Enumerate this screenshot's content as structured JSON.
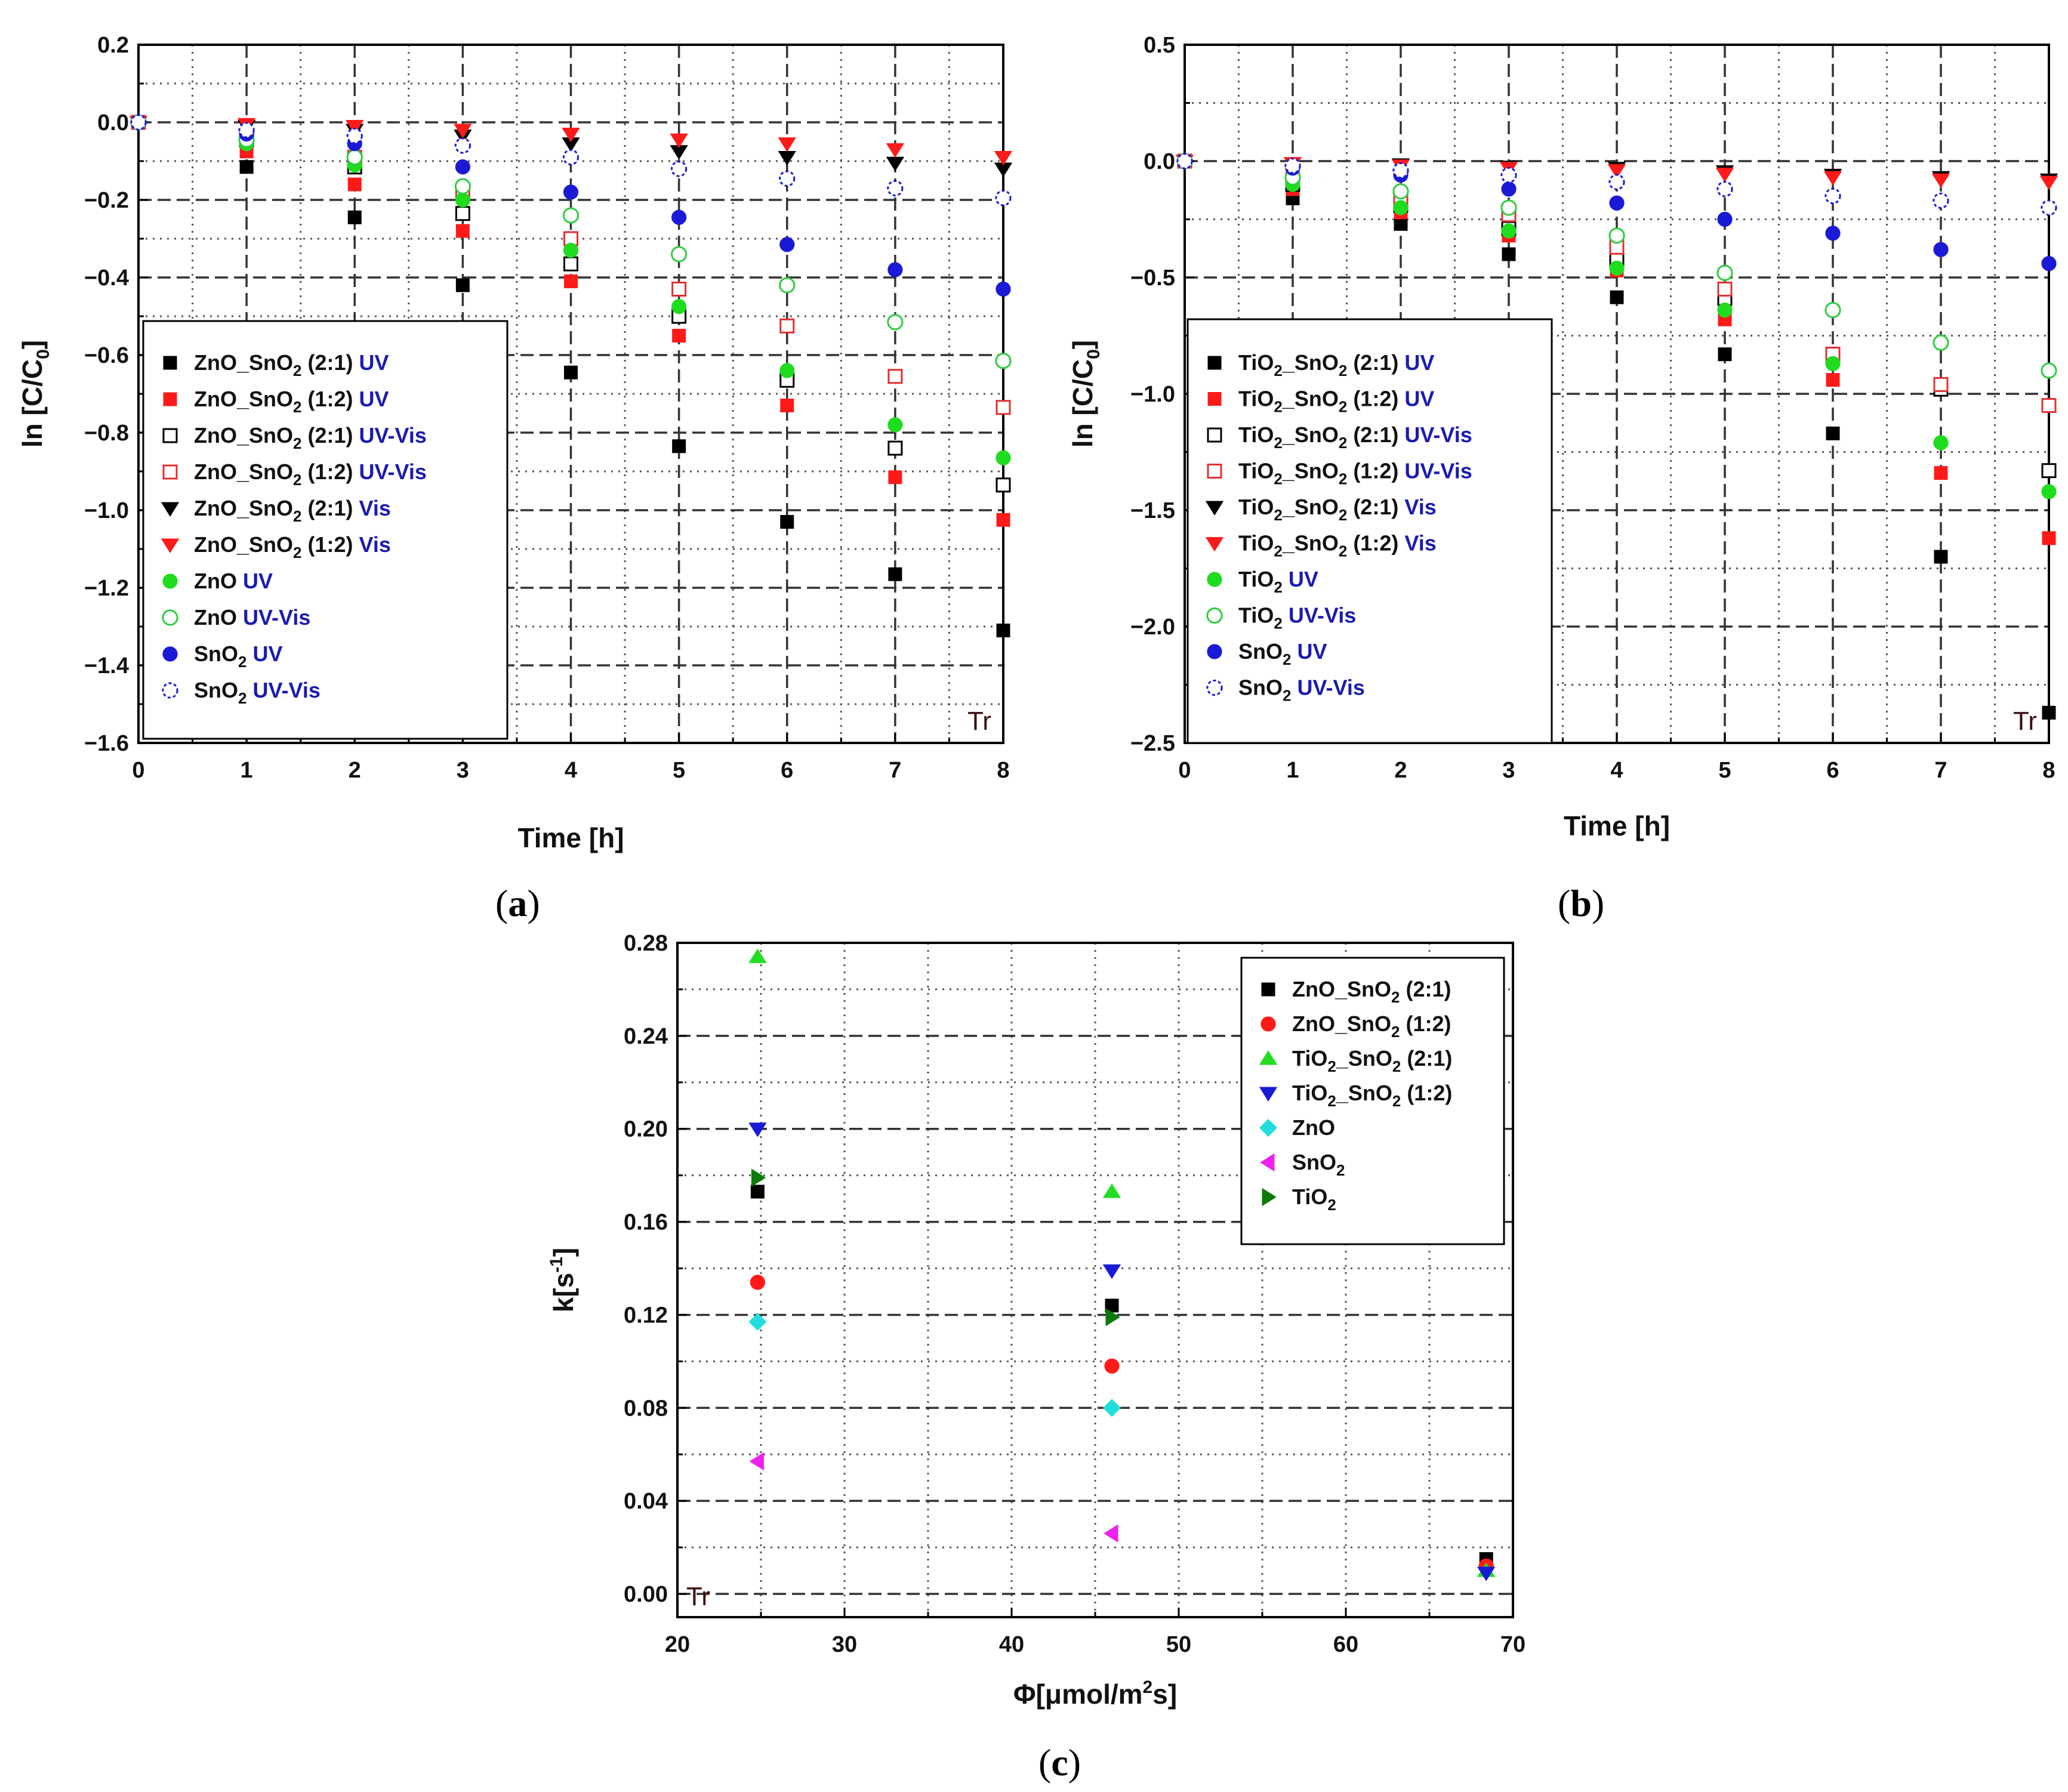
{
  "chart_data": [
    {
      "id": "a",
      "type": "scatter",
      "panel_label": "a",
      "xlabel": "Time [h]",
      "ylabel": "ln [C/C0]",
      "ylabel_main": "ln [C/C",
      "ylabel_sub": "0",
      "ylabel_close": "]",
      "xlim": [
        0,
        8
      ],
      "ylim": [
        -1.6,
        0.2
      ],
      "xticks": [
        0,
        1,
        2,
        3,
        4,
        5,
        6,
        7,
        8
      ],
      "yticks": [
        0.2,
        0.0,
        -0.2,
        -0.4,
        -0.6,
        -0.8,
        -1.0,
        -1.2,
        -1.4,
        -1.6
      ],
      "ytick_labels": [
        "0.2",
        "0.0",
        "−0.2",
        "−0.4",
        "−0.6",
        "−0.8",
        "−1.0",
        "−1.2",
        "−1.4",
        "−1.6"
      ],
      "dashed_major_y": [
        0.0,
        -0.2,
        -0.4,
        -0.6,
        -0.8,
        -1.0,
        -1.2,
        -1.4
      ],
      "dotted_minor_y": [
        0.1,
        -0.1,
        -0.3,
        -0.5,
        -0.7,
        -0.9,
        -1.1,
        -1.3,
        -1.5
      ],
      "dashed_major_x": [
        1,
        2,
        3,
        4,
        5,
        6,
        7
      ],
      "dotted_minor_x": [
        0.5,
        1.5,
        2.5,
        3.5,
        4.5,
        5.5,
        6.5,
        7.5
      ],
      "corner_text": "Tr",
      "legend_position": "lower-left",
      "x": [
        0,
        1,
        2,
        3,
        4,
        5,
        6,
        7,
        8
      ],
      "series": [
        {
          "name": "ZnO_SnO2 (2:1) UV",
          "main": "ZnO_SnO",
          "sub": "2",
          "rest": " (2:1)",
          "cond": "UV",
          "marker": "square",
          "fill": true,
          "color": "#000000",
          "values": [
            0,
            -0.115,
            -0.245,
            -0.42,
            -0.645,
            -0.835,
            -1.03,
            -1.165,
            -1.31
          ]
        },
        {
          "name": "ZnO_SnO2 (1:2) UV",
          "main": "ZnO_SnO",
          "sub": "2",
          "rest": " (1:2)",
          "cond": "UV",
          "marker": "square",
          "fill": true,
          "color": "#ff1a1a",
          "values": [
            0,
            -0.075,
            -0.16,
            -0.28,
            -0.41,
            -0.55,
            -0.73,
            -0.915,
            -1.025
          ]
        },
        {
          "name": "ZnO_SnO2 (2:1) UV-Vis",
          "main": "ZnO_SnO",
          "sub": "2",
          "rest": " (2:1)",
          "cond": "UV-Vis",
          "marker": "square",
          "fill": false,
          "color": "#000000",
          "values": [
            0,
            -0.045,
            -0.115,
            -0.235,
            -0.365,
            -0.5,
            -0.665,
            -0.84,
            -0.935
          ]
        },
        {
          "name": "ZnO_SnO2 (1:2) UV-Vis",
          "main": "ZnO_SnO",
          "sub": "2",
          "rest": " (1:2)",
          "cond": "UV-Vis",
          "marker": "square",
          "fill": false,
          "color": "#e23030",
          "values": [
            0,
            -0.035,
            -0.09,
            -0.18,
            -0.3,
            -0.43,
            -0.525,
            -0.655,
            -0.735
          ]
        },
        {
          "name": "ZnO_SnO2 (2:1) Vis",
          "main": "ZnO_SnO",
          "sub": "2",
          "rest": " (2:1)",
          "cond": "Vis",
          "marker": "tri-down",
          "fill": true,
          "color": "#000000",
          "values": [
            0,
            -0.01,
            -0.02,
            -0.035,
            -0.055,
            -0.075,
            -0.09,
            -0.105,
            -0.12
          ]
        },
        {
          "name": "ZnO_SnO2 (1:2) Vis",
          "main": "ZnO_SnO",
          "sub": "2",
          "rest": " (1:2)",
          "cond": "Vis",
          "marker": "tri-down",
          "fill": true,
          "color": "#ff1a1a",
          "values": [
            0,
            -0.005,
            -0.01,
            -0.02,
            -0.03,
            -0.045,
            -0.055,
            -0.07,
            -0.09
          ]
        },
        {
          "name": "ZnO UV",
          "main": "ZnO",
          "sub": "",
          "rest": "",
          "cond": "UV",
          "marker": "circle",
          "fill": true,
          "color": "#1fdc1f",
          "values": [
            0,
            -0.055,
            -0.11,
            -0.2,
            -0.33,
            -0.475,
            -0.64,
            -0.78,
            -0.865
          ]
        },
        {
          "name": "ZnO UV-Vis",
          "main": "ZnO",
          "sub": "",
          "rest": "",
          "cond": "UV-Vis",
          "marker": "circle",
          "fill": false,
          "color": "#2ecc40",
          "values": [
            0,
            -0.045,
            -0.09,
            -0.165,
            -0.24,
            -0.34,
            -0.42,
            -0.515,
            -0.615
          ]
        },
        {
          "name": "SnO2 UV",
          "main": "SnO",
          "sub": "2",
          "rest": "",
          "cond": "UV",
          "marker": "circle",
          "fill": true,
          "color": "#1a1ad6",
          "values": [
            0,
            -0.03,
            -0.055,
            -0.115,
            -0.18,
            -0.245,
            -0.315,
            -0.38,
            -0.43
          ]
        },
        {
          "name": "SnO2 UV-Vis",
          "main": "SnO",
          "sub": "2",
          "rest": "",
          "cond": "UV-Vis",
          "marker": "circle",
          "fill": false,
          "color": "#1a1ad6",
          "dashed": true,
          "values": [
            0,
            -0.02,
            -0.035,
            -0.06,
            -0.09,
            -0.12,
            -0.145,
            -0.17,
            -0.195
          ]
        }
      ]
    },
    {
      "id": "b",
      "type": "scatter",
      "panel_label": "b",
      "xlabel": "Time [h]",
      "ylabel": "ln [C/C0]",
      "ylabel_main": "ln [C/C",
      "ylabel_sub": "0",
      "ylabel_close": "]",
      "xlim": [
        0,
        8
      ],
      "ylim": [
        -2.5,
        0.5
      ],
      "xticks": [
        0,
        1,
        2,
        3,
        4,
        5,
        6,
        7,
        8
      ],
      "yticks": [
        0.5,
        0.0,
        -0.5,
        -1.0,
        -1.5,
        -2.0,
        -2.5
      ],
      "ytick_labels": [
        "0.5",
        "0.0",
        "−0.5",
        "−1.0",
        "−1.5",
        "−2.0",
        "−2.5"
      ],
      "dashed_major_y": [
        0.0,
        -0.5,
        -1.0,
        -1.5,
        -2.0
      ],
      "dotted_minor_y": [
        0.25,
        -0.25,
        -0.75,
        -1.25,
        -1.75,
        -2.25
      ],
      "dashed_major_x": [
        1,
        2,
        3,
        4,
        5,
        6,
        7
      ],
      "dotted_minor_x": [
        0.5,
        1.5,
        2.5,
        3.5,
        4.5,
        5.5,
        6.5,
        7.5
      ],
      "corner_text": "Tr",
      "legend_position": "lower-left",
      "x": [
        0,
        1,
        2,
        3,
        4,
        5,
        6,
        7,
        8
      ],
      "series": [
        {
          "name": "TiO2_SnO2 (2:1) UV",
          "main": "TiO",
          "sub": "2",
          "rest": "_SnO",
          "sub2": "2",
          "rest2": " (2:1)",
          "cond": "UV",
          "marker": "square",
          "fill": true,
          "color": "#000000",
          "values": [
            0,
            -0.16,
            -0.27,
            -0.4,
            -0.585,
            -0.83,
            -1.17,
            -1.7,
            -2.37
          ]
        },
        {
          "name": "TiO2_SnO2 (1:2) UV",
          "main": "TiO",
          "sub": "2",
          "rest": "_SnO",
          "sub2": "2",
          "rest2": " (1:2)",
          "cond": "UV",
          "marker": "square",
          "fill": true,
          "color": "#ff1a1a",
          "values": [
            0,
            -0.12,
            -0.22,
            -0.32,
            -0.47,
            -0.68,
            -0.94,
            -1.34,
            -1.62
          ]
        },
        {
          "name": "TiO2_SnO2 (2:1) UV-Vis",
          "main": "TiO",
          "sub": "2",
          "rest": "_SnO",
          "sub2": "2",
          "rest2": " (2:1)",
          "cond": "UV-Vis",
          "marker": "square",
          "fill": false,
          "color": "#000000",
          "values": [
            0,
            -0.1,
            -0.19,
            -0.29,
            -0.42,
            -0.59,
            -0.83,
            -0.98,
            -1.33
          ]
        },
        {
          "name": "TiO2_SnO2 (1:2) UV-Vis",
          "main": "TiO",
          "sub": "2",
          "rest": "_SnO",
          "sub2": "2",
          "rest2": " (1:2)",
          "cond": "UV-Vis",
          "marker": "square",
          "fill": false,
          "color": "#e23030",
          "values": [
            0,
            -0.08,
            -0.16,
            -0.23,
            -0.37,
            -0.55,
            -0.83,
            -0.96,
            -1.05
          ]
        },
        {
          "name": "TiO2_SnO2 (2:1) Vis",
          "main": "TiO",
          "sub": "2",
          "rest": "_SnO",
          "sub2": "2",
          "rest2": " (2:1)",
          "cond": "Vis",
          "marker": "tri-down",
          "fill": true,
          "color": "#000000",
          "values": [
            0,
            -0.01,
            -0.015,
            -0.025,
            -0.03,
            -0.045,
            -0.06,
            -0.07,
            -0.08
          ]
        },
        {
          "name": "TiO2_SnO2 (1:2) Vis",
          "main": "TiO",
          "sub": "2",
          "rest": "_SnO",
          "sub2": "2",
          "rest2": " (1:2)",
          "cond": "Vis",
          "marker": "tri-down",
          "fill": true,
          "color": "#ff1a1a",
          "values": [
            0,
            -0.01,
            -0.02,
            -0.03,
            -0.04,
            -0.055,
            -0.07,
            -0.08,
            -0.09
          ]
        },
        {
          "name": "TiO2 UV",
          "main": "TiO",
          "sub": "2",
          "rest": "",
          "cond": "UV",
          "marker": "circle",
          "fill": true,
          "color": "#1fdc1f",
          "values": [
            0,
            -0.1,
            -0.2,
            -0.3,
            -0.46,
            -0.64,
            -0.87,
            -1.21,
            -1.42
          ]
        },
        {
          "name": "TiO2 UV-Vis",
          "main": "TiO",
          "sub": "2",
          "rest": "",
          "cond": "UV-Vis",
          "marker": "circle",
          "fill": false,
          "color": "#2ecc40",
          "values": [
            0,
            -0.07,
            -0.13,
            -0.2,
            -0.32,
            -0.48,
            -0.64,
            -0.78,
            -0.9
          ]
        },
        {
          "name": "SnO2 UV",
          "main": "SnO",
          "sub": "2",
          "rest": "",
          "cond": "UV",
          "marker": "circle",
          "fill": true,
          "color": "#1a1ad6",
          "values": [
            0,
            -0.03,
            -0.06,
            -0.12,
            -0.18,
            -0.25,
            -0.31,
            -0.38,
            -0.44
          ]
        },
        {
          "name": "SnO2 UV-Vis",
          "main": "SnO",
          "sub": "2",
          "rest": "",
          "cond": "UV-Vis",
          "marker": "circle",
          "fill": false,
          "color": "#1a1ad6",
          "dashed": true,
          "values": [
            0,
            -0.02,
            -0.04,
            -0.06,
            -0.09,
            -0.12,
            -0.15,
            -0.17,
            -0.2
          ]
        }
      ]
    },
    {
      "id": "c",
      "type": "scatter",
      "panel_label": "c",
      "xlabel": "Φ[μmol/m2s]",
      "xlabel_main": "Φ[μmol/m",
      "xlabel_sup": "2",
      "xlabel_close": "s]",
      "ylabel": "k[s-1]",
      "ylabel_main": "k[s",
      "ylabel_sup": "-1",
      "ylabel_close": "]",
      "xlim": [
        20,
        70
      ],
      "ylim": [
        -0.01,
        0.28
      ],
      "xticks": [
        20,
        30,
        40,
        50,
        60,
        70
      ],
      "yticks": [
        0.0,
        0.04,
        0.08,
        0.12,
        0.16,
        0.2,
        0.24,
        0.28
      ],
      "ytick_labels": [
        "0.00",
        "0.04",
        "0.08",
        "0.12",
        "0.16",
        "0.20",
        "0.24",
        "0.28"
      ],
      "dashed_major_y": [
        0.0,
        0.04,
        0.08,
        0.12,
        0.16,
        0.2,
        0.24
      ],
      "dotted_minor_y": [
        0.02,
        0.06,
        0.1,
        0.14,
        0.18,
        0.22,
        0.26
      ],
      "dotted_minor_x": [
        25,
        30,
        35,
        40,
        45,
        50,
        55,
        60,
        65
      ],
      "corner_text": "Tr",
      "legend_position": "top-right",
      "series": [
        {
          "name": "ZnO_SnO2 (2:1)",
          "main": "ZnO_SnO",
          "sub": "2",
          "rest": " (2:1)",
          "marker": "square",
          "fill": true,
          "color": "#000000",
          "x": [
            24.8,
            46.0,
            68.4
          ],
          "values": [
            0.173,
            0.124,
            0.015
          ]
        },
        {
          "name": "ZnO_SnO2 (1:2)",
          "main": "ZnO_SnO",
          "sub": "2",
          "rest": " (1:2)",
          "marker": "circle",
          "fill": true,
          "color": "#ff1a1a",
          "x": [
            24.8,
            46.0,
            68.4
          ],
          "values": [
            0.134,
            0.098,
            0.012
          ]
        },
        {
          "name": "TiO2_SnO2 (2:1)",
          "main": "TiO",
          "sub": "2",
          "rest": "_SnO",
          "sub2": "2",
          "rest2": " (2:1)",
          "marker": "tri-up",
          "fill": true,
          "color": "#22dd22",
          "x": [
            24.8,
            46.0,
            68.4
          ],
          "values": [
            0.274,
            0.173,
            0.01
          ]
        },
        {
          "name": "TiO2_SnO2 (1:2)",
          "main": "TiO",
          "sub": "2",
          "rest": "_SnO",
          "sub2": "2",
          "rest2": " (1:2)",
          "marker": "tri-down",
          "fill": true,
          "color": "#1a1ad6",
          "x": [
            24.8,
            46.0,
            68.4
          ],
          "values": [
            0.2,
            0.139,
            0.009
          ]
        },
        {
          "name": "ZnO",
          "main": "ZnO",
          "sub": "",
          "rest": "",
          "marker": "diamond",
          "fill": true,
          "color": "#22dddd",
          "x": [
            24.8,
            46.0
          ],
          "values": [
            0.117,
            0.08
          ]
        },
        {
          "name": "SnO2",
          "main": "SnO",
          "sub": "2",
          "rest": "",
          "marker": "tri-left",
          "fill": true,
          "color": "#ee22ee",
          "x": [
            24.8,
            46.0
          ],
          "values": [
            0.057,
            0.026
          ]
        },
        {
          "name": "TiO2",
          "main": "TiO",
          "sub": "2",
          "rest": "",
          "marker": "tri-right",
          "fill": true,
          "color": "#0a7a0a",
          "x": [
            24.8,
            46.0
          ],
          "values": [
            0.179,
            0.119
          ]
        }
      ]
    }
  ]
}
